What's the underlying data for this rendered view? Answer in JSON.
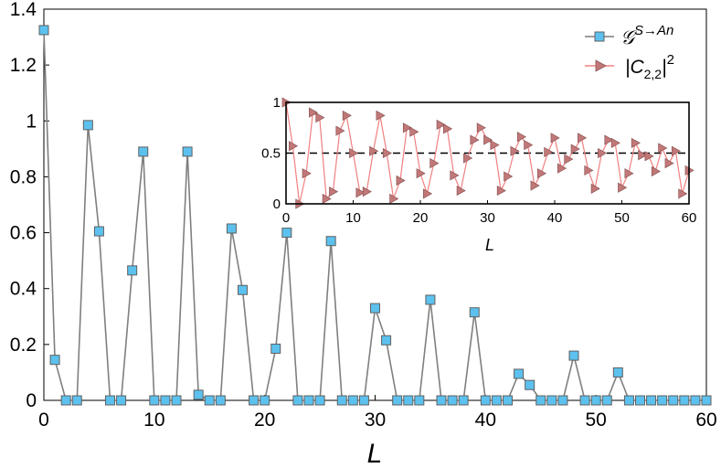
{
  "chart_data": [
    {
      "type": "line",
      "title": "",
      "xlabel": "L",
      "ylabel": "",
      "xlim": [
        0,
        60
      ],
      "ylim": [
        0,
        1.4
      ],
      "xticks": [
        "0",
        "10",
        "20",
        "30",
        "40",
        "50",
        "60"
      ],
      "yticks": [
        "0",
        "0.2",
        "0.4",
        "0.6",
        "0.8",
        "1",
        "1.2",
        "1.4"
      ],
      "grid": false,
      "legend_position": "top-right",
      "series": [
        {
          "name": "𝒢^{S→An}",
          "name_base": "𝒢",
          "name_sup": "S→An",
          "marker": "square",
          "line_color": "#7f7f7f",
          "marker_fill": "#5cc1ee",
          "x": [
            0,
            1,
            2,
            3,
            4,
            5,
            6,
            7,
            8,
            9,
            10,
            11,
            12,
            13,
            14,
            15,
            16,
            17,
            18,
            19,
            20,
            21,
            22,
            23,
            24,
            25,
            26,
            27,
            28,
            29,
            30,
            31,
            32,
            33,
            34,
            35,
            36,
            37,
            38,
            39,
            40,
            41,
            42,
            43,
            44,
            45,
            46,
            47,
            48,
            49,
            50,
            51,
            52,
            53,
            54,
            55,
            56,
            57,
            58,
            59,
            60
          ],
          "y": [
            1.325,
            0.145,
            0,
            0,
            0.985,
            0.605,
            0,
            0,
            0.465,
            0.89,
            0,
            0,
            0,
            0.89,
            0.02,
            0,
            0,
            0.615,
            0.395,
            0,
            0,
            0.185,
            0.6,
            0,
            0,
            0,
            0.57,
            0,
            0,
            0,
            0.33,
            0.215,
            0,
            0,
            0,
            0.36,
            0,
            0,
            0,
            0.315,
            0,
            0,
            0,
            0.095,
            0.055,
            0,
            0,
            0,
            0.16,
            0,
            0,
            0,
            0.1,
            0,
            0,
            0,
            0,
            0,
            0,
            0,
            0
          ]
        }
      ]
    },
    {
      "type": "line",
      "title": "",
      "xlabel": "L",
      "ylabel": "",
      "xlim": [
        0,
        60
      ],
      "ylim": [
        0,
        1
      ],
      "xticks": [
        "0",
        "10",
        "20",
        "30",
        "40",
        "50",
        "60"
      ],
      "yticks": [
        "0",
        "0.5",
        "1"
      ],
      "grid": false,
      "reference_line": {
        "y": 0.5,
        "style": "dashed",
        "color": "#000000"
      },
      "series": [
        {
          "name": "|C_{2,2}|^2",
          "name_main": "|C",
          "name_sub": "2,2",
          "name_close": "|",
          "name_sup": "2",
          "marker": "triangle-right",
          "line_color": "#f08080",
          "marker_fill": "#c27878",
          "x": [
            0,
            1,
            2,
            3,
            4,
            5,
            6,
            7,
            8,
            9,
            10,
            11,
            12,
            13,
            14,
            15,
            16,
            17,
            18,
            19,
            20,
            21,
            22,
            23,
            24,
            25,
            26,
            27,
            28,
            29,
            30,
            31,
            32,
            33,
            34,
            35,
            36,
            37,
            38,
            39,
            40,
            41,
            42,
            43,
            44,
            45,
            46,
            47,
            48,
            49,
            50,
            51,
            52,
            53,
            54,
            55,
            56,
            57,
            58,
            59,
            60
          ],
          "y": [
            1.0,
            0.57,
            0.0,
            0.3,
            0.9,
            0.85,
            0.05,
            0.12,
            0.72,
            0.87,
            0.5,
            0.11,
            0.12,
            0.52,
            0.87,
            0.5,
            0.05,
            0.23,
            0.75,
            0.71,
            0.3,
            0.1,
            0.4,
            0.78,
            0.74,
            0.28,
            0.13,
            0.45,
            0.63,
            0.75,
            0.63,
            0.58,
            0.13,
            0.27,
            0.52,
            0.66,
            0.58,
            0.18,
            0.3,
            0.51,
            0.65,
            0.35,
            0.44,
            0.54,
            0.65,
            0.33,
            0.15,
            0.5,
            0.63,
            0.6,
            0.16,
            0.3,
            0.6,
            0.48,
            0.47,
            0.32,
            0.55,
            0.4,
            0.52,
            0.1,
            0.33
          ]
        }
      ]
    }
  ]
}
